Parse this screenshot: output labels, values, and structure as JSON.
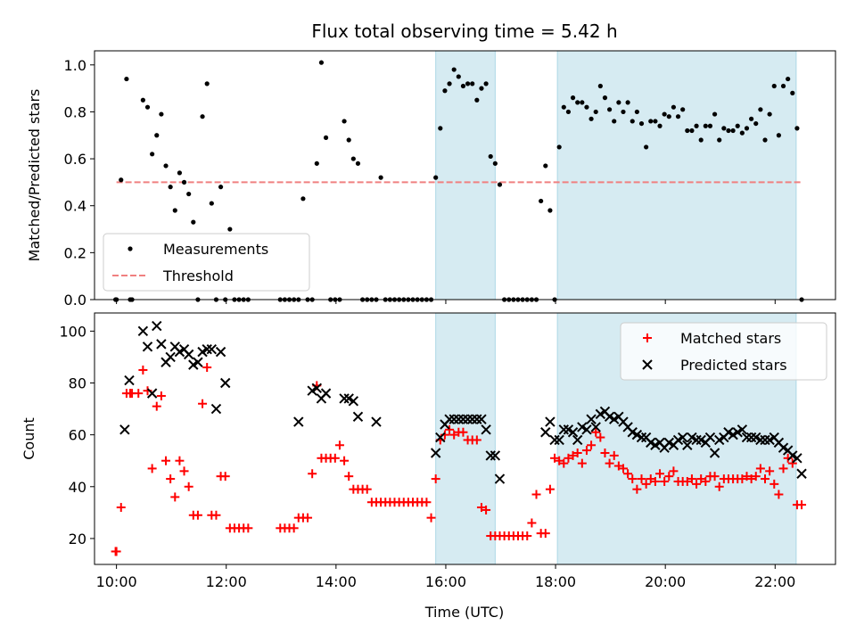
{
  "chart_data": [
    {
      "type": "scatter",
      "title": "Flux total observing time = 5.42 h",
      "xlabel": "",
      "ylabel": "Matched/Predicted stars",
      "ylim": [
        0,
        1.06
      ],
      "yticks": [
        "0.0",
        "0.2",
        "0.4",
        "0.6",
        "0.8",
        "1.0"
      ],
      "xlim_hours": [
        9.6,
        23.1
      ],
      "shaded_regions": [
        [
          "15:49",
          "16:54"
        ],
        [
          "18:02",
          "22:23"
        ]
      ],
      "threshold": {
        "value": 0.5,
        "x": [
          "10:00",
          "22:30"
        ]
      },
      "legend": {
        "placement": "lower-left",
        "entries": [
          "Measurements",
          "Threshold"
        ]
      },
      "series": [
        {
          "name": "Measurements",
          "x": [
            "09:59",
            "10:00",
            "10:05",
            "10:11",
            "10:15",
            "10:17",
            "10:29",
            "10:34",
            "10:39",
            "10:44",
            "10:49",
            "10:54",
            "10:59",
            "11:04",
            "11:09",
            "11:14",
            "11:19",
            "11:24",
            "11:29",
            "11:34",
            "11:39",
            "11:44",
            "11:49",
            "11:54",
            "11:59",
            "12:04",
            "12:09",
            "12:14",
            "12:19",
            "12:24",
            "12:59",
            "13:04",
            "13:09",
            "13:14",
            "13:19",
            "13:24",
            "13:29",
            "13:34",
            "13:39",
            "13:44",
            "13:49",
            "13:54",
            "13:59",
            "14:04",
            "14:09",
            "14:14",
            "14:19",
            "14:24",
            "14:29",
            "14:34",
            "14:39",
            "14:44",
            "14:49",
            "14:54",
            "14:59",
            "15:04",
            "15:09",
            "15:14",
            "15:19",
            "15:24",
            "15:29",
            "15:34",
            "15:39",
            "15:44",
            "15:49",
            "15:54",
            "15:59",
            "16:04",
            "16:09",
            "16:14",
            "16:19",
            "16:24",
            "16:29",
            "16:34",
            "16:39",
            "16:44",
            "16:49",
            "16:54",
            "16:59",
            "17:04",
            "17:09",
            "17:14",
            "17:19",
            "17:24",
            "17:29",
            "17:34",
            "17:39",
            "17:44",
            "17:49",
            "17:54",
            "17:59",
            "18:04",
            "18:09",
            "18:14",
            "18:19",
            "18:24",
            "18:29",
            "18:34",
            "18:39",
            "18:44",
            "18:49",
            "18:54",
            "18:59",
            "19:04",
            "19:09",
            "19:14",
            "19:19",
            "19:24",
            "19:29",
            "19:34",
            "19:39",
            "19:44",
            "19:49",
            "19:54",
            "19:59",
            "20:04",
            "20:09",
            "20:14",
            "20:19",
            "20:24",
            "20:29",
            "20:34",
            "20:39",
            "20:44",
            "20:49",
            "20:54",
            "20:59",
            "21:04",
            "21:09",
            "21:14",
            "21:19",
            "21:24",
            "21:29",
            "21:34",
            "21:39",
            "21:44",
            "21:49",
            "21:54",
            "21:59",
            "22:04",
            "22:09",
            "22:14",
            "22:19",
            "22:24",
            "22:29"
          ],
          "y": [
            0.0,
            0.0,
            0.51,
            0.94,
            0.0,
            0.0,
            0.85,
            0.82,
            0.62,
            0.7,
            0.79,
            0.57,
            0.48,
            0.38,
            0.54,
            0.5,
            0.45,
            0.33,
            0.0,
            0.78,
            0.92,
            0.41,
            0.0,
            0.48,
            0.0,
            0.3,
            0.0,
            0.0,
            0.0,
            0.0,
            0.0,
            0.0,
            0.0,
            0.0,
            0.0,
            0.43,
            0.0,
            0.0,
            0.58,
            1.01,
            0.69,
            0.0,
            0.0,
            0.0,
            0.76,
            0.68,
            0.6,
            0.58,
            0.0,
            0.0,
            0.0,
            0.0,
            0.52,
            0.0,
            0.0,
            0.0,
            0.0,
            0.0,
            0.0,
            0.0,
            0.0,
            0.0,
            0.0,
            0.0,
            0.52,
            0.73,
            0.89,
            0.92,
            0.98,
            0.95,
            0.91,
            0.92,
            0.92,
            0.85,
            0.9,
            0.92,
            0.61,
            0.58,
            0.49,
            0.0,
            0.0,
            0.0,
            0.0,
            0.0,
            0.0,
            0.0,
            0.0,
            0.42,
            0.57,
            0.38,
            0.0,
            0.65,
            0.82,
            0.8,
            0.86,
            0.84,
            0.84,
            0.82,
            0.77,
            0.8,
            0.91,
            0.86,
            0.81,
            0.76,
            0.84,
            0.8,
            0.84,
            0.76,
            0.8,
            0.75,
            0.65,
            0.76,
            0.76,
            0.74,
            0.79,
            0.78,
            0.82,
            0.78,
            0.81,
            0.72,
            0.72,
            0.74,
            0.68,
            0.74,
            0.74,
            0.79,
            0.68,
            0.73,
            0.72,
            0.72,
            0.74,
            0.71,
            0.73,
            0.77,
            0.75,
            0.81,
            0.68,
            0.79,
            0.91,
            0.7,
            0.91,
            0.94,
            0.88,
            0.73,
            0.0
          ]
        }
      ]
    },
    {
      "type": "scatter",
      "title": "",
      "xlabel": "Time (UTC)",
      "ylabel": "Count",
      "ylim": [
        10,
        107
      ],
      "yticks": [
        "20",
        "40",
        "60",
        "80",
        "100"
      ],
      "xticks": [
        "10:00",
        "12:00",
        "14:00",
        "16:00",
        "18:00",
        "20:00",
        "22:00"
      ],
      "shaded_regions": [
        [
          "15:49",
          "16:54"
        ],
        [
          "18:02",
          "22:23"
        ]
      ],
      "legend": {
        "placement": "top-right",
        "entries": [
          "Matched stars",
          "Predicted stars"
        ]
      },
      "series": [
        {
          "name": "Matched stars",
          "x": [
            "09:59",
            "10:00",
            "10:05",
            "10:11",
            "10:15",
            "10:17",
            "10:24",
            "10:29",
            "10:34",
            "10:39",
            "10:44",
            "10:49",
            "10:54",
            "10:59",
            "11:04",
            "11:09",
            "11:14",
            "11:19",
            "11:24",
            "11:29",
            "11:34",
            "11:39",
            "11:44",
            "11:49",
            "11:54",
            "11:59",
            "12:04",
            "12:09",
            "12:14",
            "12:19",
            "12:24",
            "12:59",
            "13:04",
            "13:09",
            "13:14",
            "13:19",
            "13:24",
            "13:29",
            "13:34",
            "13:39",
            "13:44",
            "13:49",
            "13:54",
            "13:59",
            "14:04",
            "14:09",
            "14:14",
            "14:19",
            "14:24",
            "14:29",
            "14:34",
            "14:39",
            "14:44",
            "14:49",
            "14:54",
            "14:59",
            "15:04",
            "15:09",
            "15:14",
            "15:19",
            "15:24",
            "15:29",
            "15:34",
            "15:39",
            "15:44",
            "15:49",
            "15:54",
            "15:59",
            "16:04",
            "16:09",
            "16:14",
            "16:19",
            "16:24",
            "16:29",
            "16:34",
            "16:39",
            "16:44",
            "16:49",
            "16:54",
            "16:59",
            "17:04",
            "17:09",
            "17:14",
            "17:19",
            "17:24",
            "17:29",
            "17:34",
            "17:39",
            "17:44",
            "17:49",
            "17:54",
            "17:59",
            "18:04",
            "18:09",
            "18:14",
            "18:19",
            "18:24",
            "18:29",
            "18:34",
            "18:39",
            "18:44",
            "18:49",
            "18:54",
            "18:59",
            "19:04",
            "19:09",
            "19:14",
            "19:19",
            "19:24",
            "19:29",
            "19:34",
            "19:39",
            "19:44",
            "19:49",
            "19:54",
            "19:59",
            "20:04",
            "20:09",
            "20:14",
            "20:19",
            "20:24",
            "20:29",
            "20:34",
            "20:39",
            "20:44",
            "20:49",
            "20:54",
            "20:59",
            "21:04",
            "21:09",
            "21:14",
            "21:19",
            "21:24",
            "21:29",
            "21:34",
            "21:39",
            "21:44",
            "21:49",
            "21:54",
            "21:59",
            "22:04",
            "22:09",
            "22:14",
            "22:19",
            "22:24",
            "22:29"
          ],
          "y": [
            15,
            15,
            32,
            76,
            76,
            76,
            76,
            85,
            77,
            47,
            71,
            75,
            50,
            43,
            36,
            50,
            46,
            40,
            29,
            29,
            72,
            86,
            29,
            29,
            44,
            44,
            24,
            24,
            24,
            24,
            24,
            24,
            24,
            24,
            24,
            28,
            28,
            28,
            45,
            79,
            51,
            51,
            51,
            51,
            56,
            50,
            44,
            39,
            39,
            39,
            39,
            34,
            34,
            34,
            34,
            34,
            34,
            34,
            34,
            34,
            34,
            34,
            34,
            34,
            28,
            43,
            58,
            60,
            62,
            60,
            61,
            61,
            58,
            58,
            58,
            32,
            31,
            21,
            21,
            21,
            21,
            21,
            21,
            21,
            21,
            21,
            26,
            37,
            22,
            22,
            39,
            51,
            50,
            49,
            51,
            52,
            53,
            49,
            54,
            56,
            61,
            59,
            53,
            49,
            52,
            48,
            47,
            45,
            43,
            39,
            43,
            41,
            43,
            42,
            45,
            42,
            44,
            46,
            42,
            42,
            42,
            43,
            41,
            43,
            42,
            44,
            44,
            40,
            43,
            43,
            43,
            43,
            43,
            44,
            43,
            44,
            47,
            43,
            46,
            41,
            37,
            47,
            51,
            49,
            33,
            33
          ]
        },
        {
          "name": "Predicted stars",
          "x": [
            "10:09",
            "10:14",
            "10:29",
            "10:34",
            "10:39",
            "10:44",
            "10:49",
            "10:54",
            "10:59",
            "11:04",
            "11:09",
            "11:14",
            "11:19",
            "11:24",
            "11:29",
            "11:34",
            "11:39",
            "11:44",
            "11:49",
            "11:54",
            "11:59",
            "13:19",
            "13:34",
            "13:39",
            "13:44",
            "13:49",
            "14:09",
            "14:14",
            "14:19",
            "14:24",
            "14:44",
            "15:49",
            "15:54",
            "15:59",
            "16:04",
            "16:09",
            "16:14",
            "16:19",
            "16:24",
            "16:29",
            "16:34",
            "16:39",
            "16:44",
            "16:49",
            "16:54",
            "16:59",
            "17:49",
            "17:54",
            "17:59",
            "18:04",
            "18:09",
            "18:14",
            "18:19",
            "18:24",
            "18:29",
            "18:34",
            "18:39",
            "18:44",
            "18:49",
            "18:54",
            "18:59",
            "19:04",
            "19:09",
            "19:14",
            "19:19",
            "19:24",
            "19:29",
            "19:34",
            "19:39",
            "19:44",
            "19:49",
            "19:54",
            "19:59",
            "20:04",
            "20:09",
            "20:14",
            "20:19",
            "20:24",
            "20:29",
            "20:34",
            "20:39",
            "20:44",
            "20:49",
            "20:54",
            "20:59",
            "21:04",
            "21:09",
            "21:14",
            "21:19",
            "21:24",
            "21:29",
            "21:34",
            "21:39",
            "21:44",
            "21:49",
            "21:54",
            "21:59",
            "22:04",
            "22:09",
            "22:14",
            "22:19",
            "22:24",
            "22:29"
          ],
          "y": [
            62,
            81,
            100,
            94,
            76,
            102,
            95,
            88,
            90,
            94,
            92,
            93,
            91,
            87,
            88,
            92,
            93,
            93,
            70,
            92,
            80,
            65,
            77,
            78,
            74,
            76,
            74,
            74,
            73,
            67,
            65,
            53,
            59,
            64,
            66,
            66,
            66,
            66,
            66,
            66,
            66,
            66,
            62,
            52,
            52,
            43,
            61,
            65,
            58,
            58,
            62,
            62,
            61,
            58,
            63,
            62,
            66,
            63,
            68,
            69,
            67,
            66,
            67,
            65,
            63,
            61,
            60,
            59,
            59,
            57,
            56,
            57,
            55,
            57,
            56,
            58,
            59,
            56,
            59,
            58,
            58,
            57,
            59,
            53,
            58,
            59,
            61,
            60,
            61,
            62,
            59,
            59,
            59,
            58,
            58,
            58,
            59,
            57,
            55,
            54,
            52,
            51,
            45
          ]
        }
      ]
    }
  ]
}
